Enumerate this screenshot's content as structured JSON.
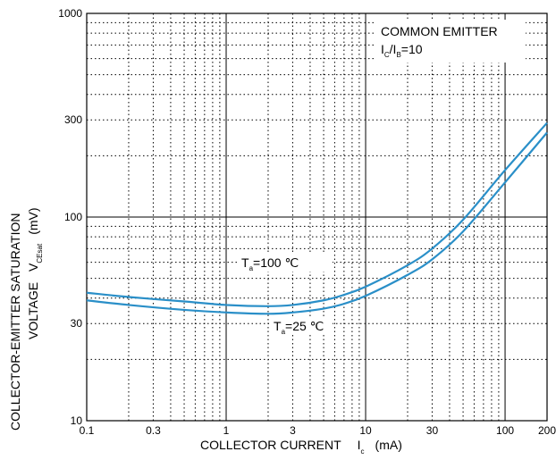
{
  "chart_data": {
    "type": "line",
    "x_scale": "log",
    "y_scale": "log",
    "xlim": [
      0.1,
      200
    ],
    "ylim": [
      10,
      1000
    ],
    "grid": "dotted minor, solid major decades",
    "x_ticks": [
      {
        "value": 0.1,
        "label": "0.1"
      },
      {
        "value": 0.3,
        "label": "0.3"
      },
      {
        "value": 1,
        "label": "1"
      },
      {
        "value": 3,
        "label": "3"
      },
      {
        "value": 10,
        "label": "10"
      },
      {
        "value": 30,
        "label": "30"
      },
      {
        "value": 100,
        "label": "100"
      },
      {
        "value": 200,
        "label": "200"
      }
    ],
    "y_ticks": [
      {
        "value": 10,
        "label": "10"
      },
      {
        "value": 30,
        "label": "30"
      },
      {
        "value": 100,
        "label": "100"
      },
      {
        "value": 300,
        "label": "300"
      },
      {
        "value": 1000,
        "label": "1000"
      }
    ],
    "xlabel": {
      "main": "COLLECTOR CURRENT",
      "symbol": "I",
      "sub": "c",
      "unit": "(mA)"
    },
    "ylabel": {
      "line1": "COLLECTOR-EMITTER SATURATION",
      "line2": "VOLTAGE",
      "symbol": "V",
      "sub": "CEsat",
      "unit": "(mV)"
    },
    "annotation": {
      "line1": "COMMON EMITTER",
      "ic": "I",
      "ic_sub": "C",
      "sep": "/I",
      "ib_sub": "B",
      "ratio": "=10"
    },
    "series": [
      {
        "label_main": "T",
        "label_sub": "a",
        "label_rest": "=100 ℃",
        "color": "#2a8fc8",
        "x": [
          0.1,
          0.2,
          0.5,
          1,
          2,
          3,
          5,
          7,
          10,
          20,
          30,
          50,
          100,
          200
        ],
        "y": [
          42.5,
          40.5,
          38.5,
          37,
          36.5,
          37,
          39,
          41.5,
          45.5,
          58,
          70,
          97,
          170,
          290
        ]
      },
      {
        "label_main": "T",
        "label_sub": "a",
        "label_rest": "=25 ℃",
        "color": "#2a8fc8",
        "x": [
          0.1,
          0.2,
          0.5,
          1,
          2,
          3,
          5,
          7,
          10,
          20,
          30,
          50,
          100,
          200
        ],
        "y": [
          39,
          37,
          35,
          34,
          33.5,
          34,
          35.5,
          37.5,
          41,
          52,
          62,
          85,
          148,
          260
        ]
      }
    ]
  }
}
